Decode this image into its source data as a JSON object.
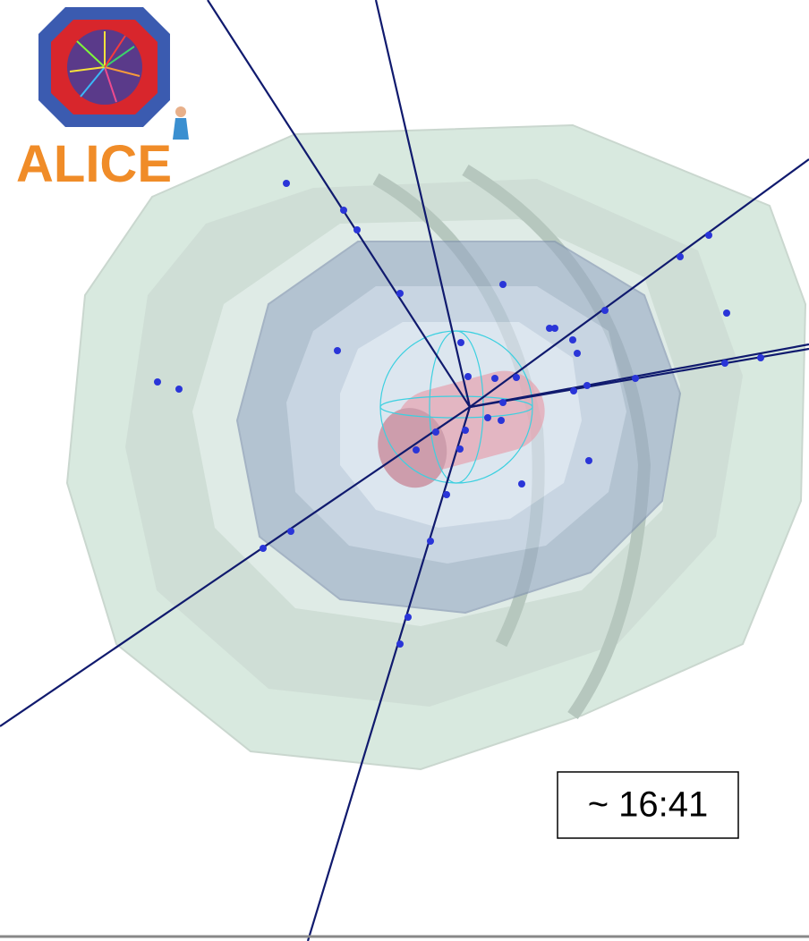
{
  "logo": {
    "text": "ALICE"
  },
  "timestamp": "~ 16:41"
}
